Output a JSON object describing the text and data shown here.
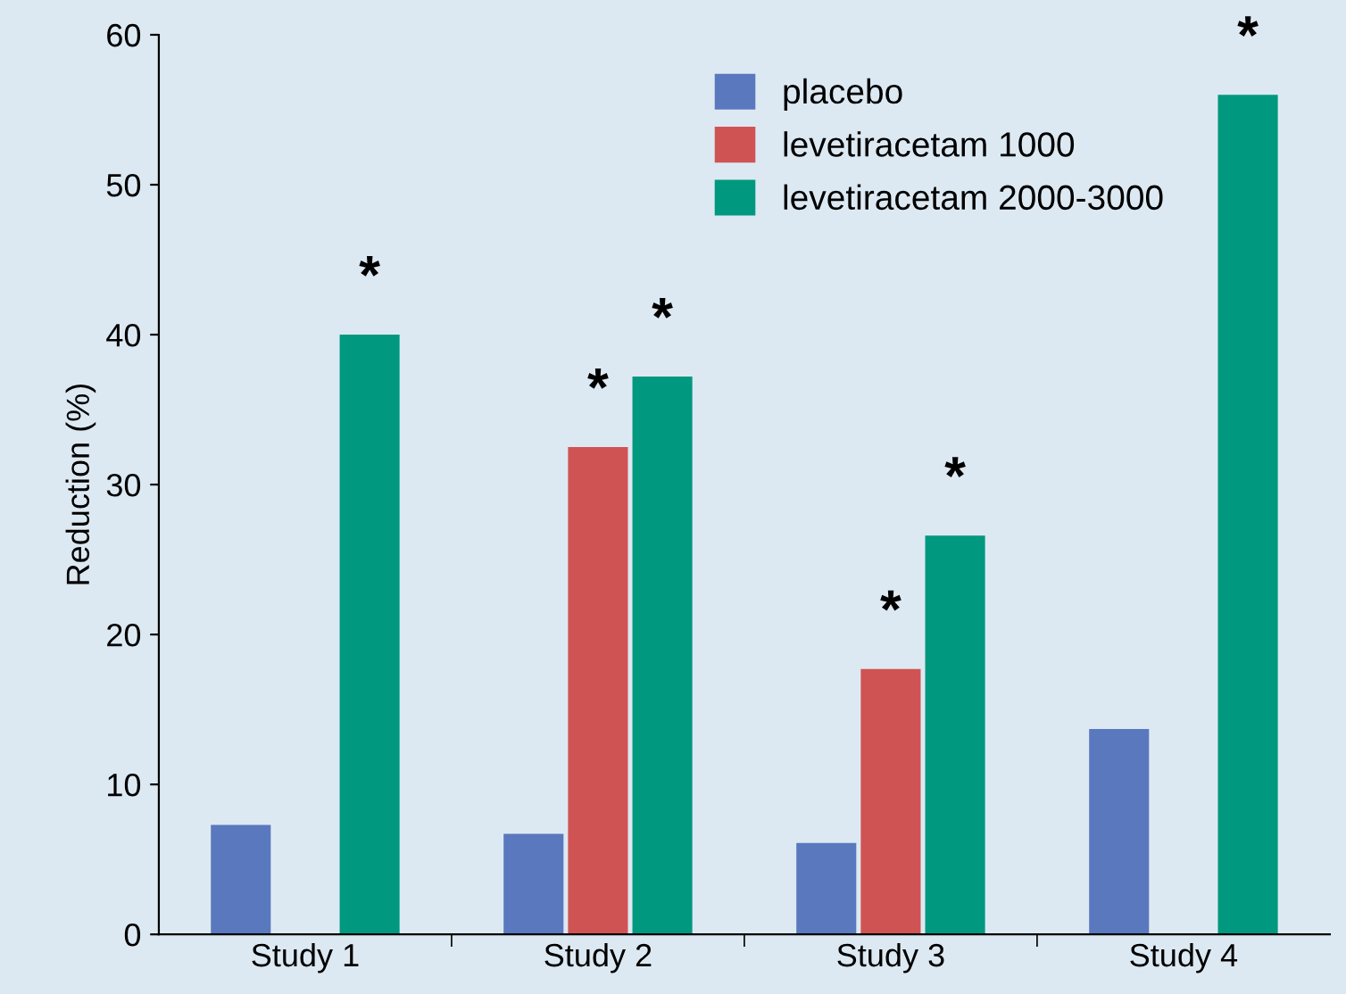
{
  "chart_data": {
    "type": "bar",
    "ylabel": "Reduction (%)",
    "categories": [
      "Study 1",
      "Study 2",
      "Study 3",
      "Study 4"
    ],
    "series": [
      {
        "name": "placebo",
        "color": "#5a78be",
        "values": [
          7.3,
          6.7,
          6.1,
          13.7
        ],
        "value_labels": [
          null,
          null,
          null,
          null
        ]
      },
      {
        "name": "levetiracetam 1000",
        "color": "#d05353",
        "values": [
          null,
          32.5,
          17.7,
          null
        ],
        "value_labels": [
          null,
          "*",
          "*",
          null
        ]
      },
      {
        "name": "levetiracetam 2000-3000",
        "color": "#00987f",
        "values": [
          40.0,
          37.2,
          26.6,
          56.0
        ],
        "value_labels": [
          "*",
          "*",
          "*",
          "*"
        ]
      }
    ],
    "ylim": [
      0,
      60
    ],
    "yticks": [
      0,
      10,
      20,
      30,
      40,
      50,
      60
    ],
    "grid": false,
    "legend": "top right"
  }
}
